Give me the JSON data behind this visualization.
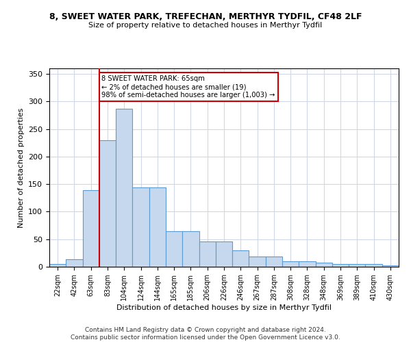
{
  "title": "8, SWEET WATER PARK, TREFECHAN, MERTHYR TYDFIL, CF48 2LF",
  "subtitle": "Size of property relative to detached houses in Merthyr Tydfil",
  "xlabel": "Distribution of detached houses by size in Merthyr Tydfil",
  "ylabel": "Number of detached properties",
  "categories": [
    "22sqm",
    "42sqm",
    "63sqm",
    "83sqm",
    "104sqm",
    "124sqm",
    "144sqm",
    "165sqm",
    "185sqm",
    "206sqm",
    "226sqm",
    "246sqm",
    "267sqm",
    "287sqm",
    "308sqm",
    "328sqm",
    "348sqm",
    "369sqm",
    "389sqm",
    "410sqm",
    "430sqm"
  ],
  "values": [
    5,
    14,
    139,
    230,
    287,
    144,
    144,
    65,
    65,
    46,
    46,
    30,
    19,
    19,
    10,
    10,
    8,
    5,
    5,
    5,
    2
  ],
  "bar_color": "#c5d8ed",
  "bar_edge_color": "#5b9bd5",
  "vline_x": 2.5,
  "vline_color": "#cc0000",
  "annotation_text": "8 SWEET WATER PARK: 65sqm\n← 2% of detached houses are smaller (19)\n98% of semi-detached houses are larger (1,003) →",
  "annotation_box_color": "#ffffff",
  "annotation_box_edge": "#cc0000",
  "ylim": [
    0,
    360
  ],
  "yticks": [
    0,
    50,
    100,
    150,
    200,
    250,
    300,
    350
  ],
  "footer": "Contains HM Land Registry data © Crown copyright and database right 2024.\nContains public sector information licensed under the Open Government Licence v3.0.",
  "background_color": "#ffffff",
  "grid_color": "#d0d8e8",
  "title_fontsize": 9,
  "subtitle_fontsize": 8,
  "footer_fontsize": 6.5
}
